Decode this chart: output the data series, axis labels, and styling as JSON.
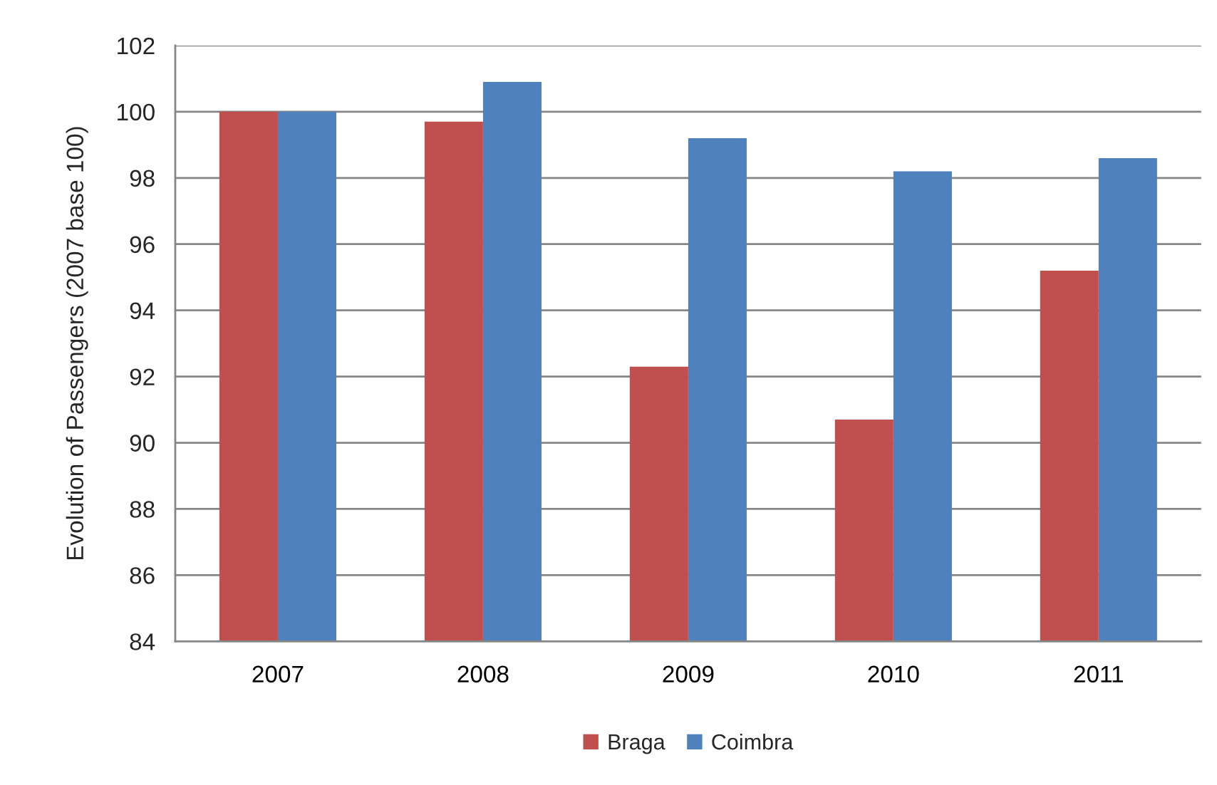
{
  "chart_data": {
    "type": "bar",
    "ylabel": "Evolution of Passengers (2007 base 100)",
    "categories": [
      "2007",
      "2008",
      "2009",
      "2010",
      "2011"
    ],
    "series": [
      {
        "name": "Braga",
        "color": "#c0504d",
        "values": [
          100,
          99.7,
          92.3,
          90.7,
          95.2
        ]
      },
      {
        "name": "Coimbra",
        "color": "#4f81bd",
        "values": [
          100,
          100.9,
          99.2,
          98.2,
          98.6
        ]
      }
    ],
    "ylim": [
      84,
      102
    ],
    "yticks": [
      84,
      86,
      88,
      90,
      92,
      94,
      96,
      98,
      100,
      102
    ],
    "grid": "y",
    "legend": "bottom"
  }
}
